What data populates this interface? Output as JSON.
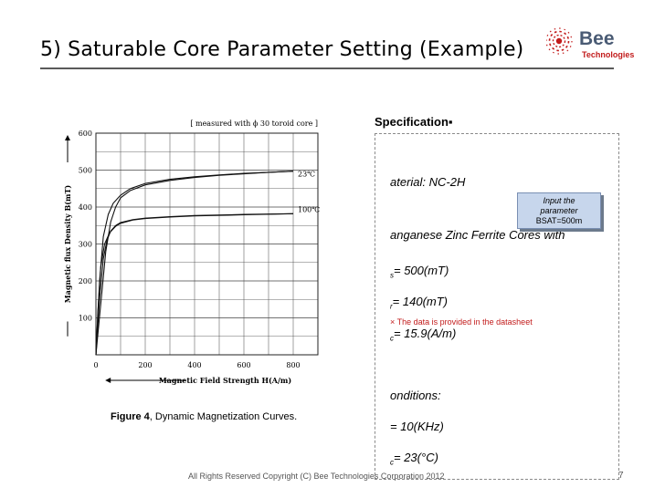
{
  "slide": {
    "title": "5) Saturable Core Parameter Setting (Example)",
    "footer": "All Rights Reserved Copyright (C) Bee Technologies Corporation 2012",
    "page_number": "7"
  },
  "logo": {
    "word": "Bee",
    "sub": "Technologies"
  },
  "figure": {
    "caption_bold": "Figure 4",
    "caption_rest": ", Dynamic Magnetization Curves."
  },
  "spec": {
    "heading": "Specification▪",
    "material": "aterial: NC-2H",
    "type": "anganese Zinc Ferrite Cores with",
    "bs_sub": "s",
    "bs_val": "= 500(mT)",
    "br_sub": "r",
    "br_val": "= 140(mT)",
    "hc_sub": "c",
    "hc_val": "= 15.9(A/m)",
    "conditions": "onditions:",
    "freq": "= 10(KHz)",
    "tc_sub": "c",
    "tc_val": "= 23(°C)"
  },
  "callout": {
    "line1": "Input the",
    "line2": "parameter",
    "line3": "BSAT=500m"
  },
  "note": "× The data is provided in the datasheet",
  "colors": {
    "accent_red": "#c21b1b",
    "callout_fill": "#c7d6ec",
    "logo_blue": "#4a5b74"
  },
  "chart_data": {
    "type": "line",
    "title": "[ measured with ϕ 30 toroid core ]",
    "xlabel": "Magnetic Field Strength  H(A/m)",
    "ylabel": "Magnetic flux Density  B(mT)",
    "xlim": [
      0,
      900
    ],
    "ylim": [
      0,
      600
    ],
    "xticks": [
      0,
      200,
      400,
      600,
      800
    ],
    "yticks": [
      100,
      200,
      300,
      400,
      500,
      600
    ],
    "grid": true,
    "series": [
      {
        "name": "23℃",
        "branches": [
          {
            "x": [
              0,
              20,
              40,
              60,
              80,
              100,
              140,
              200,
              300,
              400,
              500,
              600,
              700,
              800
            ],
            "y": [
              0,
              140,
              280,
              360,
              400,
              425,
              445,
              460,
              472,
              480,
              486,
              490,
              494,
              497
            ]
          },
          {
            "x": [
              0,
              15,
              30,
              50,
              70,
              100,
              140,
              200,
              300,
              400,
              500,
              600,
              700,
              800
            ],
            "y": [
              0,
              200,
              320,
              380,
              410,
              432,
              450,
              464,
              475,
              482,
              487,
              491,
              494,
              497
            ]
          }
        ]
      },
      {
        "name": "100℃",
        "branches": [
          {
            "x": [
              0,
              15,
              30,
              45,
              60,
              80,
              100,
              150,
              200,
              300,
              400,
              600,
              800
            ],
            "y": [
              0,
              150,
              260,
              310,
              335,
              350,
              358,
              366,
              370,
              374,
              377,
              380,
              382
            ]
          },
          {
            "x": [
              0,
              8,
              20,
              35,
              55,
              80,
              100,
              150,
              200,
              300,
              400,
              600,
              800
            ],
            "y": [
              0,
              120,
              240,
              300,
              330,
              348,
              356,
              365,
              369,
              373,
              376,
              379,
              382
            ]
          }
        ]
      }
    ]
  }
}
